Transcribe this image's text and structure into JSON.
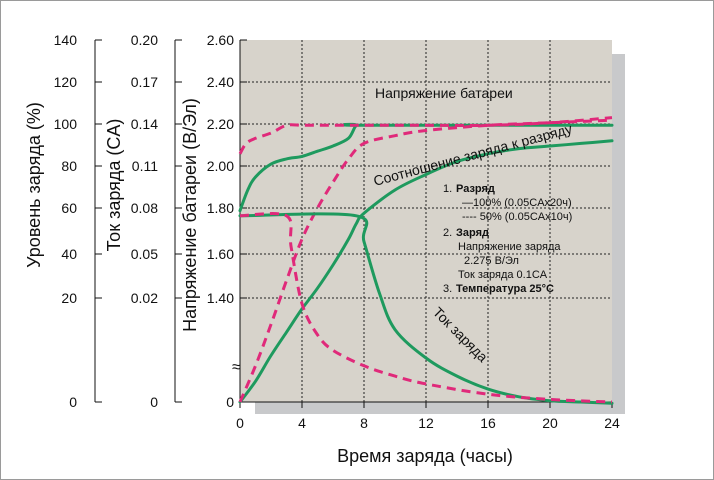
{
  "chart_data": {
    "type": "line",
    "xlabel": "Время заряда (часы)",
    "xlim": [
      0,
      24
    ],
    "x_ticks": [
      "0",
      "4",
      "8",
      "12",
      "16",
      "20",
      "24"
    ],
    "y_axes": [
      {
        "label": "Уровень заряда (%)",
        "ticks": [
          "140",
          "120",
          "100",
          "80",
          "60",
          "40",
          "20",
          "0"
        ],
        "range": [
          0,
          140
        ]
      },
      {
        "label": "Ток заряда (CA)",
        "ticks": [
          "0.20",
          "0.17",
          "0.14",
          "0.11",
          "0.08",
          "0.05",
          "0.02",
          "0"
        ],
        "range": [
          0,
          0.2
        ]
      },
      {
        "label": "Напряжение батареи (В/Эл)",
        "ticks": [
          "2.60",
          "2.40",
          "2.20",
          "2.00",
          "1.80",
          "1.60",
          "1.40",
          "0"
        ],
        "range": [
          1.2,
          2.6
        ]
      }
    ],
    "grid": true,
    "annotations": {
      "voltage": "Напряжение батареи",
      "ratio": "Соотношение заряда к разряду",
      "current": "Ток заряда",
      "break_mark": "≈"
    },
    "legend": {
      "items": [
        {
          "number": "1.",
          "title": "Разряд",
          "lines": [
            "—100% (0.05CAx20ч)",
            "----  50% (0.05CAx10ч)"
          ]
        },
        {
          "number": "2.",
          "title": "Заряд",
          "lines": [
            "Напряжение заряда",
            "2.275 В/Эл",
            "Ток заряда 0.1CA"
          ]
        },
        {
          "number": "3.",
          "title": "Температура 25°C",
          "lines": []
        }
      ]
    },
    "series": [
      {
        "id": "voltage_100",
        "style": "solid",
        "color": "#1e9a5e",
        "x": [
          0,
          0.5,
          1,
          2,
          3,
          4,
          5,
          6,
          7,
          7.5,
          8,
          24
        ],
        "y": [
          1.94,
          2.02,
          2.07,
          2.12,
          2.14,
          2.15,
          2.17,
          2.19,
          2.22,
          2.27,
          2.27,
          2.27
        ]
      },
      {
        "id": "voltage_50",
        "style": "dashed",
        "color": "#e0297a",
        "x": [
          0,
          0.4,
          1,
          2,
          3,
          4,
          5,
          6,
          7,
          8,
          12,
          16,
          20,
          24
        ],
        "y": [
          2.16,
          2.2,
          2.22,
          2.24,
          2.27,
          2.27,
          2.27,
          2.27,
          2.27,
          2.27,
          2.27,
          2.27,
          2.28,
          2.3
        ]
      },
      {
        "id": "ratio_100",
        "style": "solid",
        "color": "#1e9a5e",
        "x": [
          0,
          1,
          2,
          3,
          4,
          5,
          6,
          7,
          7.5,
          8,
          10,
          12,
          14,
          16,
          18,
          20,
          22,
          24
        ],
        "y": [
          1.2,
          1.28,
          1.38,
          1.47,
          1.56,
          1.64,
          1.73,
          1.83,
          1.89,
          1.93,
          2.02,
          2.08,
          2.13,
          2.16,
          2.18,
          2.19,
          2.2,
          2.21
        ]
      },
      {
        "id": "ratio_50",
        "style": "dashed",
        "color": "#e0297a",
        "x": [
          0,
          1,
          2,
          3,
          4,
          5,
          6,
          7,
          8,
          10,
          12,
          16,
          20,
          24
        ],
        "y": [
          1.2,
          1.34,
          1.5,
          1.67,
          1.83,
          1.95,
          2.05,
          2.14,
          2.2,
          2.23,
          2.25,
          2.27,
          2.28,
          2.29
        ]
      },
      {
        "id": "current_100",
        "style": "solid",
        "color": "#1e9a5e",
        "x": [
          0,
          7.5,
          8,
          9,
          10,
          12,
          14,
          16,
          18,
          20,
          22,
          24
        ],
        "y": [
          1.92,
          1.92,
          1.82,
          1.62,
          1.48,
          1.37,
          1.3,
          1.25,
          1.22,
          1.205,
          1.2,
          1.195
        ]
      },
      {
        "id": "current_50",
        "style": "dashed",
        "color": "#e0297a",
        "x": [
          0,
          3,
          3.3,
          4,
          5,
          6,
          8,
          10,
          12,
          16,
          20,
          24
        ],
        "y": [
          1.92,
          1.92,
          1.8,
          1.58,
          1.46,
          1.4,
          1.34,
          1.3,
          1.27,
          1.23,
          1.21,
          1.2
        ]
      }
    ]
  }
}
